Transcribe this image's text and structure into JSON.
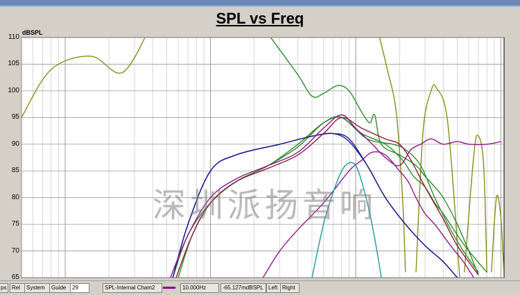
{
  "title": "SPL vs Freq",
  "y_axis_label": "dBSPL",
  "y_ticks": [
    "110",
    "105",
    "100",
    "95",
    "90",
    "85",
    "80",
    "75",
    "70",
    "65"
  ],
  "watermark": "深圳派扬音响",
  "statusbar": {
    "cut_left": "ps",
    "rel": "Rel",
    "system": "System",
    "guide": "Guide",
    "number_field": "29",
    "curve_name": "SPL-Internal Cham2",
    "curve_color": "#8b008b",
    "frequency": "10.000Hz",
    "level": "-65.127mdBSPL",
    "left": "Left",
    "right": "Right"
  },
  "chart_data": {
    "type": "line",
    "title": "SPL vs Freq",
    "ylabel": "dBSPL",
    "xscale": "log",
    "ylim": [
      65,
      110
    ],
    "y_ticks": [
      110,
      105,
      100,
      95,
      90,
      85,
      80,
      75,
      70,
      65
    ],
    "grid": true,
    "series": [
      {
        "color": "#8b8b1a",
        "values": [
          [
            5,
            95
          ],
          [
            8,
            104
          ],
          [
            15,
            106.5
          ],
          [
            25,
            103.5
          ],
          [
            40,
            113
          ]
        ]
      },
      {
        "color": "#8b8b1a",
        "values": [
          [
            1400,
            112
          ],
          [
            1650,
            104
          ],
          [
            1900,
            96
          ],
          [
            2100,
            80
          ],
          [
            2200,
            66
          ]
        ]
      },
      {
        "color": "#8b8b1a",
        "values": [
          [
            2600,
            66
          ],
          [
            2900,
            92
          ],
          [
            3300,
            100
          ],
          [
            3600,
            100.5
          ],
          [
            4300,
            94
          ],
          [
            5200,
            65
          ]
        ]
      },
      {
        "color": "#8b8b1a",
        "values": [
          [
            5600,
            66
          ],
          [
            6500,
            88
          ],
          [
            7000,
            91.5
          ],
          [
            7600,
            86
          ],
          [
            8000,
            66
          ]
        ]
      },
      {
        "color": "#8b8b1a",
        "values": [
          [
            8600,
            66
          ],
          [
            9300,
            80
          ],
          [
            10000,
            76
          ],
          [
            10500,
            65
          ]
        ]
      },
      {
        "color": "#2e8b2e",
        "values": [
          [
            260,
            110
          ],
          [
            400,
            103
          ],
          [
            500,
            99
          ],
          [
            600,
            99.5
          ],
          [
            750,
            101
          ],
          [
            900,
            100
          ],
          [
            1100,
            96
          ],
          [
            1250,
            94
          ],
          [
            1350,
            95.5
          ],
          [
            1500,
            90
          ],
          [
            2000,
            88
          ],
          [
            2600,
            86
          ],
          [
            3000,
            84
          ],
          [
            3500,
            82
          ],
          [
            4000,
            80
          ],
          [
            5000,
            75
          ],
          [
            6000,
            70
          ],
          [
            7000,
            65.5
          ]
        ]
      },
      {
        "color": "#2e8b2e",
        "values": [
          [
            55,
            65
          ],
          [
            70,
            73
          ],
          [
            100,
            79
          ],
          [
            150,
            83
          ],
          [
            250,
            86
          ],
          [
            400,
            90
          ],
          [
            600,
            94
          ],
          [
            800,
            95
          ],
          [
            1100,
            92
          ],
          [
            1600,
            90
          ],
          [
            2100,
            87
          ],
          [
            2500,
            84
          ],
          [
            3000,
            82
          ],
          [
            3500,
            79
          ],
          [
            4000,
            77
          ],
          [
            5000,
            73
          ],
          [
            6000,
            70
          ],
          [
            8000,
            66
          ]
        ]
      },
      {
        "color": "#2e8b2e",
        "values": [
          [
            60,
            65
          ],
          [
            75,
            73
          ],
          [
            100,
            79
          ],
          [
            150,
            83
          ],
          [
            250,
            86
          ],
          [
            400,
            89.5
          ],
          [
            600,
            94
          ],
          [
            800,
            95
          ],
          [
            1200,
            91
          ],
          [
            1800,
            90
          ],
          [
            2200,
            89
          ],
          [
            2800,
            86
          ],
          [
            3500,
            80
          ],
          [
            4500,
            74
          ],
          [
            5500,
            70
          ],
          [
            7000,
            66
          ]
        ]
      },
      {
        "color": "#1a1a8b",
        "values": [
          [
            55,
            65
          ],
          [
            70,
            75
          ],
          [
            100,
            85
          ],
          [
            150,
            88
          ],
          [
            300,
            90
          ],
          [
            500,
            91.5
          ],
          [
            700,
            92
          ],
          [
            900,
            91
          ],
          [
            1200,
            86
          ],
          [
            1600,
            80
          ],
          [
            2200,
            75
          ],
          [
            3000,
            71
          ],
          [
            4000,
            68
          ],
          [
            5000,
            65
          ]
        ]
      },
      {
        "color": "#1a1a8b",
        "values": [
          [
            55,
            65
          ],
          [
            70,
            75
          ],
          [
            100,
            85
          ],
          [
            150,
            88
          ],
          [
            300,
            90
          ],
          [
            500,
            91.5
          ],
          [
            700,
            92
          ],
          [
            900,
            90.5
          ],
          [
            1200,
            86
          ],
          [
            1600,
            80
          ],
          [
            2200,
            75
          ],
          [
            3000,
            71
          ],
          [
            4000,
            68
          ],
          [
            5000,
            65
          ]
        ]
      },
      {
        "color": "#8b1a3a",
        "values": [
          [
            58,
            65
          ],
          [
            75,
            73
          ],
          [
            100,
            79
          ],
          [
            150,
            83
          ],
          [
            250,
            85.5
          ],
          [
            400,
            88
          ],
          [
            600,
            92
          ],
          [
            800,
            95
          ],
          [
            1100,
            93
          ],
          [
            1600,
            91
          ],
          [
            2000,
            90
          ],
          [
            2400,
            87
          ],
          [
            3000,
            82
          ],
          [
            4000,
            76
          ],
          [
            5000,
            71
          ],
          [
            7000,
            65.5
          ]
        ]
      },
      {
        "color": "#8b1a8b",
        "values": [
          [
            53,
            65
          ],
          [
            70,
            73
          ],
          [
            100,
            80
          ],
          [
            150,
            83.5
          ],
          [
            250,
            86
          ],
          [
            400,
            88.5
          ],
          [
            600,
            93
          ],
          [
            800,
            95.5
          ],
          [
            1000,
            93
          ],
          [
            1300,
            90
          ],
          [
            1600,
            87.5
          ],
          [
            2000,
            86
          ],
          [
            2400,
            89
          ],
          [
            2800,
            90
          ],
          [
            3300,
            91
          ],
          [
            4000,
            90
          ],
          [
            5000,
            90.5
          ],
          [
            6000,
            90
          ],
          [
            8000,
            90
          ],
          [
            10000,
            90.5
          ]
        ]
      },
      {
        "color": "#8b1a8b",
        "values": [
          [
            230,
            65
          ],
          [
            300,
            70
          ],
          [
            400,
            74
          ],
          [
            600,
            79
          ],
          [
            900,
            85
          ],
          [
            1100,
            87
          ],
          [
            1300,
            88.5
          ],
          [
            1600,
            88
          ],
          [
            2000,
            85
          ],
          [
            2300,
            83
          ],
          [
            2600,
            80
          ],
          [
            3000,
            77
          ],
          [
            3500,
            75
          ],
          [
            4500,
            71
          ],
          [
            5500,
            68
          ],
          [
            6500,
            65
          ]
        ]
      },
      {
        "color": "#1a9b9b",
        "values": [
          [
            500,
            65
          ],
          [
            600,
            75
          ],
          [
            700,
            81
          ],
          [
            800,
            85
          ],
          [
            900,
            86.5
          ],
          [
            1000,
            86
          ],
          [
            1100,
            83
          ],
          [
            1250,
            77
          ],
          [
            1400,
            70
          ],
          [
            1500,
            65
          ]
        ]
      }
    ]
  }
}
